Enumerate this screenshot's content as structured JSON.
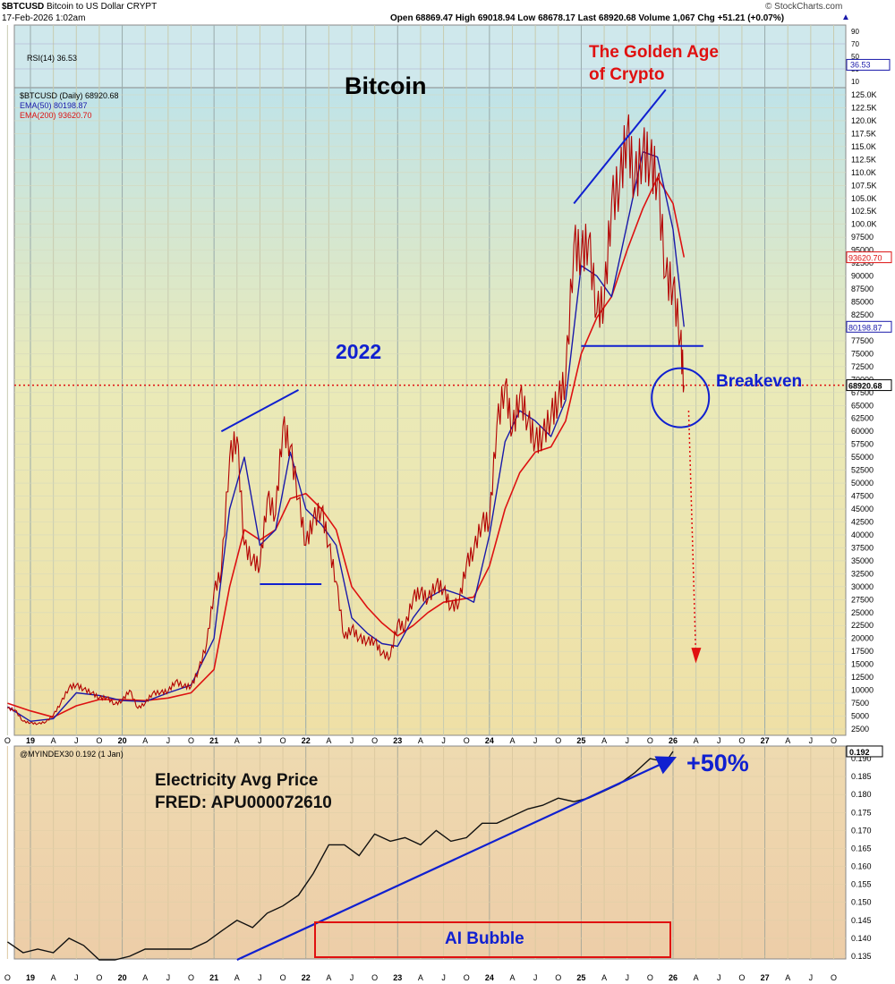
{
  "header": {
    "symbol": "$BTCUSD",
    "name": "Bitcoin to US Dollar",
    "exchange": "CRYPT",
    "date": "17-Feb-2026 1:02am",
    "quote": "Open 68869.47  High 69018.94  Low 68678.17  Last 68920.68  Volume 1,067  Chg +51.21 (+0.07%)",
    "arrow": "▲",
    "brand": "© StockCharts.com"
  },
  "rsi": {
    "label": "RSI(14) 36.53",
    "value": 36.53,
    "ticks": [
      "90",
      "70",
      "50",
      "30",
      "10"
    ]
  },
  "legend": {
    "price": "$BTCUSD (Daily) 68920.68",
    "ema50": "EMA(50) 80198.87",
    "ema200": "EMA(200) 93620.70"
  },
  "annotations": {
    "title": "Bitcoin",
    "golden1": "The Golden Age",
    "golden2": "of Crypto",
    "y2022": "2022",
    "breakeven": "Breakeven",
    "elec1": "Electricity Avg Price",
    "elec2": "FRED: APU000072610",
    "plus50": "+50%",
    "ai": "AI Bubble"
  },
  "lower_panel": {
    "label": "@MYINDEX30 0.192 (1 Jan)"
  },
  "colors": {
    "price": "#b30000",
    "ema50": "#1a1aaa",
    "ema200": "#dd1111",
    "annot_blue": "#1020d0",
    "annot_red": "#e01010",
    "index": "#111111"
  },
  "chart_data": [
    {
      "type": "line",
      "title": "Bitcoin",
      "x_axis_labels": [
        "O",
        "19",
        "A",
        "J",
        "O",
        "20",
        "A",
        "J",
        "O",
        "21",
        "A",
        "J",
        "O",
        "22",
        "A",
        "J",
        "O",
        "23",
        "A",
        "J",
        "O",
        "24",
        "A",
        "J",
        "O",
        "25",
        "A",
        "J",
        "O",
        "26",
        "A",
        "J",
        "O",
        "27",
        "A",
        "J",
        "O"
      ],
      "ylim": [
        2500,
        127500
      ],
      "y_ticks": [
        2500,
        5000,
        7500,
        10000,
        12500,
        15000,
        17500,
        20000,
        22500,
        25000,
        27500,
        30000,
        32500,
        35000,
        37500,
        40000,
        42500,
        45000,
        47500,
        50000,
        52500,
        55000,
        57500,
        60000,
        62500,
        65000,
        67500,
        70000,
        72500,
        75000,
        77500,
        80000,
        82500,
        85000,
        87500,
        90000,
        92500,
        95000,
        97500,
        100000,
        102500,
        105000,
        107500,
        110000,
        112500,
        115000,
        117500,
        120000,
        122500,
        125000
      ],
      "y_tick_labels": [
        "2500",
        "5000",
        "7500",
        "10000",
        "12500",
        "15000",
        "17500",
        "20000",
        "22500",
        "25000",
        "27500",
        "30000",
        "32500",
        "35000",
        "37500",
        "40000",
        "42500",
        "45000",
        "47500",
        "50000",
        "52500",
        "55000",
        "57500",
        "60000",
        "62500",
        "65000",
        "67500",
        "70000",
        "72500",
        "75000",
        "77500",
        "80000",
        "82500",
        "85000",
        "87500",
        "90000",
        "92500",
        "95000",
        "97500",
        "100.0K",
        "102.5K",
        "105.0K",
        "107.5K",
        "110.0K",
        "112.5K",
        "115.0K",
        "117.5K",
        "120.0K",
        "122.5K",
        "125.0K"
      ],
      "last_price": 68920.68,
      "last_price_label": "68920.68",
      "ema50_last_label": "80198.87",
      "ema200_last_label": "93620.70",
      "series": [
        {
          "name": "$BTCUSD (Daily)",
          "x": [
            2018.75,
            2018.83,
            2018.92,
            2019.0,
            2019.08,
            2019.17,
            2019.25,
            2019.33,
            2019.42,
            2019.5,
            2019.58,
            2019.67,
            2019.75,
            2019.83,
            2019.92,
            2020.0,
            2020.08,
            2020.17,
            2020.25,
            2020.33,
            2020.42,
            2020.5,
            2020.58,
            2020.67,
            2020.75,
            2020.83,
            2020.92,
            2021.0,
            2021.08,
            2021.17,
            2021.25,
            2021.33,
            2021.42,
            2021.5,
            2021.58,
            2021.67,
            2021.75,
            2021.83,
            2021.92,
            2022.0,
            2022.08,
            2022.17,
            2022.25,
            2022.33,
            2022.42,
            2022.5,
            2022.58,
            2022.67,
            2022.75,
            2022.83,
            2022.92,
            2023.0,
            2023.08,
            2023.17,
            2023.25,
            2023.33,
            2023.42,
            2023.5,
            2023.58,
            2023.67,
            2023.75,
            2023.83,
            2023.92,
            2024.0,
            2024.08,
            2024.17,
            2024.25,
            2024.33,
            2024.42,
            2024.5,
            2024.58,
            2024.67,
            2024.75,
            2024.83,
            2024.92,
            2025.0,
            2025.08,
            2025.17,
            2025.25,
            2025.33,
            2025.42,
            2025.5,
            2025.58,
            2025.67,
            2025.75,
            2025.83,
            2025.92,
            2026.0,
            2026.08,
            2026.12
          ],
          "values": [
            6500,
            6200,
            4000,
            3700,
            3500,
            3900,
            5200,
            7500,
            10500,
            11000,
            10200,
            9500,
            8500,
            8600,
            7300,
            8000,
            10000,
            6500,
            7500,
            9400,
            9600,
            9800,
            11700,
            10800,
            10700,
            13800,
            19000,
            29000,
            33000,
            55000,
            59000,
            38000,
            35000,
            34000,
            47000,
            44000,
            61000,
            57000,
            47000,
            38000,
            43000,
            45000,
            38000,
            31000,
            20000,
            22000,
            20000,
            19500,
            19500,
            17000,
            16500,
            23000,
            22000,
            28000,
            29000,
            27500,
            30500,
            29500,
            26000,
            27000,
            34500,
            37000,
            42500,
            42500,
            61000,
            69000,
            60000,
            67000,
            62000,
            58000,
            59000,
            63000,
            66000,
            70000,
            96000,
            94000,
            97000,
            83000,
            85000,
            104000,
            108000,
            118000,
            108000,
            114000,
            112000,
            109000,
            90000,
            88000,
            78000,
            68920
          ]
        },
        {
          "name": "EMA(50)",
          "x": [
            2018.75,
            2019.0,
            2019.25,
            2019.5,
            2019.75,
            2020.0,
            2020.25,
            2020.5,
            2020.75,
            2021.0,
            2021.17,
            2021.33,
            2021.5,
            2021.67,
            2021.83,
            2022.0,
            2022.17,
            2022.33,
            2022.5,
            2022.67,
            2022.83,
            2023.0,
            2023.17,
            2023.33,
            2023.5,
            2023.67,
            2023.83,
            2024.0,
            2024.17,
            2024.33,
            2024.5,
            2024.67,
            2024.83,
            2025.0,
            2025.17,
            2025.33,
            2025.5,
            2025.67,
            2025.83,
            2026.0,
            2026.12
          ],
          "values": [
            6800,
            4000,
            4500,
            9500,
            9000,
            8000,
            7800,
            9500,
            11000,
            20000,
            45000,
            55000,
            38000,
            41000,
            56000,
            45000,
            42000,
            38000,
            24000,
            21000,
            19000,
            18500,
            24000,
            27800,
            29500,
            28500,
            27000,
            40000,
            58000,
            64000,
            62000,
            59000,
            66000,
            92000,
            90000,
            86000,
            100000,
            114000,
            113000,
            99000,
            80199
          ]
        },
        {
          "name": "EMA(200)",
          "x": [
            2018.75,
            2019.0,
            2019.25,
            2019.5,
            2019.75,
            2020.0,
            2020.25,
            2020.5,
            2020.75,
            2021.0,
            2021.17,
            2021.33,
            2021.5,
            2021.67,
            2021.83,
            2022.0,
            2022.17,
            2022.33,
            2022.5,
            2022.67,
            2022.83,
            2023.0,
            2023.17,
            2023.33,
            2023.5,
            2023.67,
            2023.83,
            2024.0,
            2024.17,
            2024.33,
            2024.5,
            2024.67,
            2024.83,
            2025.0,
            2025.17,
            2025.33,
            2025.5,
            2025.67,
            2025.83,
            2026.0,
            2026.12
          ],
          "values": [
            7500,
            6000,
            4800,
            7000,
            8200,
            8200,
            8000,
            8500,
            9500,
            14000,
            30000,
            41000,
            39000,
            41000,
            47000,
            48000,
            45000,
            41000,
            30000,
            26000,
            23000,
            20500,
            22500,
            25000,
            27000,
            27500,
            28000,
            34000,
            45000,
            52000,
            56000,
            57000,
            62000,
            75000,
            82000,
            86000,
            95000,
            103000,
            109000,
            104000,
            93621
          ]
        }
      ],
      "annotations": {
        "breakeven_level": 68000,
        "horizontal_lines": [
          {
            "x": [
              2021.5,
              2022.17
            ],
            "y": 30500
          },
          {
            "x": [
              2025.0,
              2026.33
            ],
            "y": 76500
          }
        ],
        "trend_lines": [
          {
            "x": [
              2021.08,
              2021.92
            ],
            "y": [
              60000,
              68000
            ]
          },
          {
            "x": [
              2024.92,
              2025.92
            ],
            "y": [
              104000,
              126000
            ]
          }
        ]
      }
    },
    {
      "type": "line",
      "label": "@MYINDEX30 0.192 (1 Jan)",
      "ylim": [
        0.132,
        0.194
      ],
      "y_ticks": [
        0.135,
        0.14,
        0.145,
        0.15,
        0.155,
        0.16,
        0.165,
        0.17,
        0.175,
        0.18,
        0.185,
        0.19
      ],
      "y_tick_labels": [
        "0.135",
        "0.140",
        "0.145",
        "0.150",
        "0.155",
        "0.160",
        "0.165",
        "0.170",
        "0.175",
        "0.180",
        "0.185",
        "0.190"
      ],
      "last_value": 0.192,
      "last_value_label": "0.192",
      "series": [
        {
          "name": "@MYINDEX30",
          "x": [
            2018.75,
            2018.92,
            2019.08,
            2019.25,
            2019.42,
            2019.58,
            2019.75,
            2019.92,
            2020.08,
            2020.25,
            2020.42,
            2020.58,
            2020.75,
            2020.92,
            2021.08,
            2021.25,
            2021.42,
            2021.58,
            2021.75,
            2021.92,
            2022.08,
            2022.25,
            2022.42,
            2022.58,
            2022.75,
            2022.92,
            2023.08,
            2023.25,
            2023.42,
            2023.58,
            2023.75,
            2023.92,
            2024.08,
            2024.25,
            2024.42,
            2024.58,
            2024.75,
            2024.92,
            2025.08,
            2025.25,
            2025.42,
            2025.58,
            2025.75,
            2025.92,
            2026.0
          ],
          "values": [
            0.139,
            0.136,
            0.137,
            0.136,
            0.14,
            0.138,
            0.134,
            0.134,
            0.135,
            0.137,
            0.137,
            0.137,
            0.137,
            0.139,
            0.142,
            0.145,
            0.143,
            0.147,
            0.149,
            0.152,
            0.158,
            0.166,
            0.166,
            0.163,
            0.169,
            0.167,
            0.168,
            0.166,
            0.17,
            0.167,
            0.168,
            0.172,
            0.172,
            0.174,
            0.176,
            0.177,
            0.179,
            0.178,
            0.179,
            0.181,
            0.183,
            0.186,
            0.19,
            0.189,
            0.192
          ]
        }
      ],
      "trend_line": {
        "x": [
          2021.25,
          2026.0
        ],
        "y": [
          0.134,
          0.19
        ]
      },
      "x_axis_labels": [
        "O",
        "19",
        "A",
        "J",
        "O",
        "20",
        "A",
        "J",
        "O",
        "21",
        "A",
        "J",
        "O",
        "22",
        "A",
        "J",
        "O",
        "23",
        "A",
        "J",
        "O",
        "24",
        "A",
        "J",
        "O",
        "25",
        "A",
        "J",
        "O",
        "26",
        "A",
        "J",
        "O",
        "27",
        "A",
        "J",
        "O"
      ]
    }
  ]
}
